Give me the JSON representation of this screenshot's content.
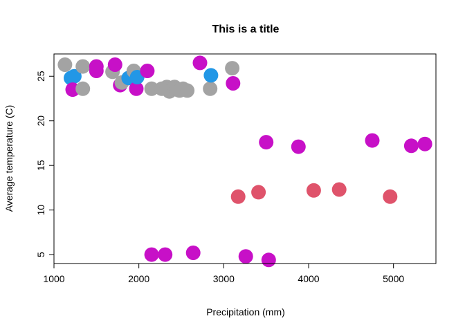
{
  "chart_data": {
    "type": "scatter",
    "title": "This is a title",
    "xlabel": "Precipitation (mm)",
    "ylabel": "Average temperature (C)",
    "xlim": [
      1000,
      5500
    ],
    "ylim": [
      4,
      27.5
    ],
    "xticks": [
      1000,
      2000,
      3000,
      4000,
      5000
    ],
    "yticks": [
      5,
      10,
      15,
      20,
      25
    ],
    "grid": false,
    "legend": "none",
    "point_colors": {
      "gray": "#A3A3A3",
      "magenta": "#C710C7",
      "blue": "#2297E6",
      "red": "#DF536B"
    },
    "points": [
      {
        "x": 1130,
        "y": 26.3,
        "color": "gray"
      },
      {
        "x": 1200,
        "y": 24.8,
        "color": "blue"
      },
      {
        "x": 1240,
        "y": 25.0,
        "color": "blue"
      },
      {
        "x": 1220,
        "y": 23.5,
        "color": "magenta"
      },
      {
        "x": 1340,
        "y": 26.1,
        "color": "gray"
      },
      {
        "x": 1340,
        "y": 23.6,
        "color": "gray"
      },
      {
        "x": 1500,
        "y": 26.1,
        "color": "magenta"
      },
      {
        "x": 1500,
        "y": 25.6,
        "color": "magenta"
      },
      {
        "x": 1690,
        "y": 25.5,
        "color": "gray"
      },
      {
        "x": 1720,
        "y": 26.3,
        "color": "magenta"
      },
      {
        "x": 1780,
        "y": 24.0,
        "color": "magenta"
      },
      {
        "x": 1800,
        "y": 24.3,
        "color": "gray"
      },
      {
        "x": 1880,
        "y": 24.8,
        "color": "blue"
      },
      {
        "x": 1940,
        "y": 25.6,
        "color": "gray"
      },
      {
        "x": 1970,
        "y": 23.6,
        "color": "magenta"
      },
      {
        "x": 1980,
        "y": 24.9,
        "color": "blue"
      },
      {
        "x": 2100,
        "y": 25.6,
        "color": "magenta"
      },
      {
        "x": 2150,
        "y": 23.6,
        "color": "gray"
      },
      {
        "x": 2270,
        "y": 23.6,
        "color": "gray"
      },
      {
        "x": 2330,
        "y": 23.8,
        "color": "gray"
      },
      {
        "x": 2360,
        "y": 23.3,
        "color": "gray"
      },
      {
        "x": 2420,
        "y": 23.8,
        "color": "gray"
      },
      {
        "x": 2450,
        "y": 23.5,
        "color": "gray"
      },
      {
        "x": 2480,
        "y": 23.4,
        "color": "gray"
      },
      {
        "x": 2520,
        "y": 23.6,
        "color": "gray"
      },
      {
        "x": 2570,
        "y": 23.4,
        "color": "gray"
      },
      {
        "x": 2720,
        "y": 26.5,
        "color": "magenta"
      },
      {
        "x": 2840,
        "y": 23.6,
        "color": "gray"
      },
      {
        "x": 2850,
        "y": 25.1,
        "color": "blue"
      },
      {
        "x": 3100,
        "y": 25.9,
        "color": "gray"
      },
      {
        "x": 3110,
        "y": 24.2,
        "color": "magenta"
      },
      {
        "x": 2150,
        "y": 5.0,
        "color": "magenta"
      },
      {
        "x": 2310,
        "y": 5.0,
        "color": "magenta"
      },
      {
        "x": 2640,
        "y": 5.2,
        "color": "magenta"
      },
      {
        "x": 3260,
        "y": 4.8,
        "color": "magenta"
      },
      {
        "x": 3530,
        "y": 4.4,
        "color": "magenta"
      },
      {
        "x": 3170,
        "y": 11.5,
        "color": "red"
      },
      {
        "x": 3410,
        "y": 12.0,
        "color": "red"
      },
      {
        "x": 3500,
        "y": 17.6,
        "color": "magenta"
      },
      {
        "x": 3880,
        "y": 17.1,
        "color": "magenta"
      },
      {
        "x": 4060,
        "y": 12.2,
        "color": "red"
      },
      {
        "x": 4360,
        "y": 12.3,
        "color": "red"
      },
      {
        "x": 4750,
        "y": 17.8,
        "color": "magenta"
      },
      {
        "x": 4960,
        "y": 11.5,
        "color": "red"
      },
      {
        "x": 5210,
        "y": 17.2,
        "color": "magenta"
      },
      {
        "x": 5370,
        "y": 17.4,
        "color": "magenta"
      }
    ]
  }
}
